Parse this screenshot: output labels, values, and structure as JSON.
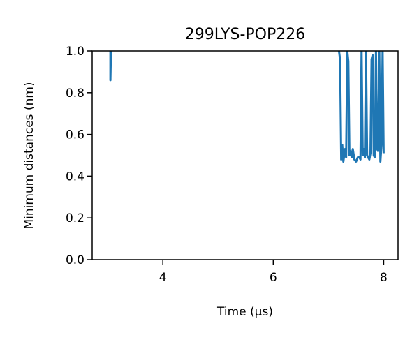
{
  "chart_data": {
    "type": "line",
    "title": "299LYS-POP226",
    "xlabel": "Time (μs)",
    "ylabel": "Minimum distances (nm)",
    "xlim": [
      2.72,
      8.26
    ],
    "ylim": [
      0.0,
      1.0
    ],
    "xticks": [
      4,
      6,
      8
    ],
    "yticks": [
      0.0,
      0.2,
      0.4,
      0.6,
      0.8,
      1.0
    ],
    "xtick_labels": [
      "4",
      "6",
      "8"
    ],
    "ytick_labels": [
      "0.0",
      "0.2",
      "0.4",
      "0.6",
      "0.8",
      "1.0"
    ],
    "grid": false,
    "line_color": "#1f77b4",
    "series": [
      {
        "segments": [
          {
            "x": [
              3.05,
              3.05,
              3.06
            ],
            "y": [
              1.0,
              0.86,
              1.0
            ]
          },
          {
            "x": [
              7.19,
              7.21,
              7.23,
              7.25,
              7.27,
              7.3,
              7.32,
              7.34,
              7.36,
              7.38,
              7.4,
              7.42,
              7.44,
              7.47,
              7.5,
              7.53,
              7.56,
              7.58,
              7.6,
              7.62,
              7.64,
              7.66,
              7.68,
              7.7,
              7.72,
              7.74,
              7.76,
              7.78,
              7.8,
              7.82,
              7.84,
              7.86,
              7.88,
              7.9,
              7.92,
              7.94,
              7.96,
              7.98,
              8.0
            ],
            "y": [
              1.0,
              0.96,
              0.48,
              0.55,
              0.47,
              0.53,
              0.49,
              1.0,
              0.95,
              0.5,
              0.52,
              0.49,
              0.53,
              0.48,
              0.47,
              0.49,
              0.49,
              0.48,
              1.0,
              0.5,
              0.53,
              0.49,
              1.0,
              0.5,
              0.49,
              0.48,
              0.51,
              0.96,
              0.98,
              0.5,
              0.49,
              1.0,
              0.53,
              0.52,
              1.0,
              0.47,
              0.55,
              1.0,
              0.51
            ]
          }
        ]
      }
    ]
  }
}
